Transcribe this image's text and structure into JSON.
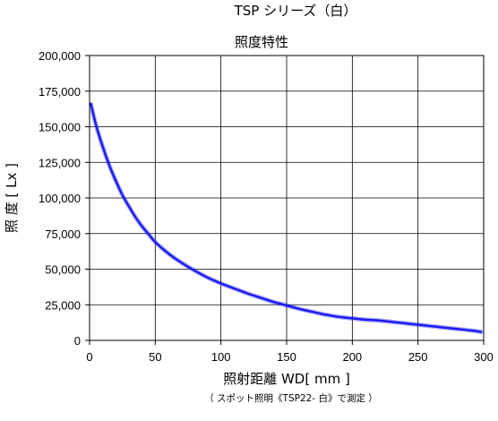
{
  "chart_data": {
    "type": "line",
    "title": "TSP シリーズ（白）",
    "subtitle": "照度特性",
    "xlabel": "照射距離 WD[ mm ]",
    "ylabel": "照 度 [ Lx ]",
    "note": "（ スポット照明《TSP22- 白》で測定 ）",
    "xlim": [
      0,
      300
    ],
    "ylim": [
      0,
      200000
    ],
    "x_ticks": [
      "0",
      "50",
      "100",
      "150",
      "200",
      "250",
      "300"
    ],
    "y_ticks": [
      "0",
      "25,000",
      "50,000",
      "75,000",
      "100,000",
      "125,000",
      "150,000",
      "175,000",
      "200,000"
    ],
    "grid": true,
    "series": [
      {
        "color": "#1c1cf0",
        "x": [
          1,
          5,
          10,
          15,
          20,
          25,
          30,
          35,
          40,
          45,
          50,
          60,
          70,
          80,
          90,
          100,
          110,
          120,
          130,
          140,
          150,
          160,
          170,
          180,
          190,
          200,
          210,
          220,
          230,
          240,
          250,
          260,
          270,
          280,
          290,
          298
        ],
        "y": [
          166000,
          151000,
          136000,
          123000,
          112000,
          102000,
          94000,
          86500,
          80000,
          74500,
          69000,
          61000,
          54500,
          49000,
          44000,
          40000,
          36500,
          33000,
          30000,
          27000,
          24500,
          22000,
          20000,
          18000,
          16500,
          15500,
          14500,
          14000,
          13000,
          12000,
          11000,
          10000,
          9000,
          8000,
          7000,
          6000
        ]
      }
    ]
  }
}
